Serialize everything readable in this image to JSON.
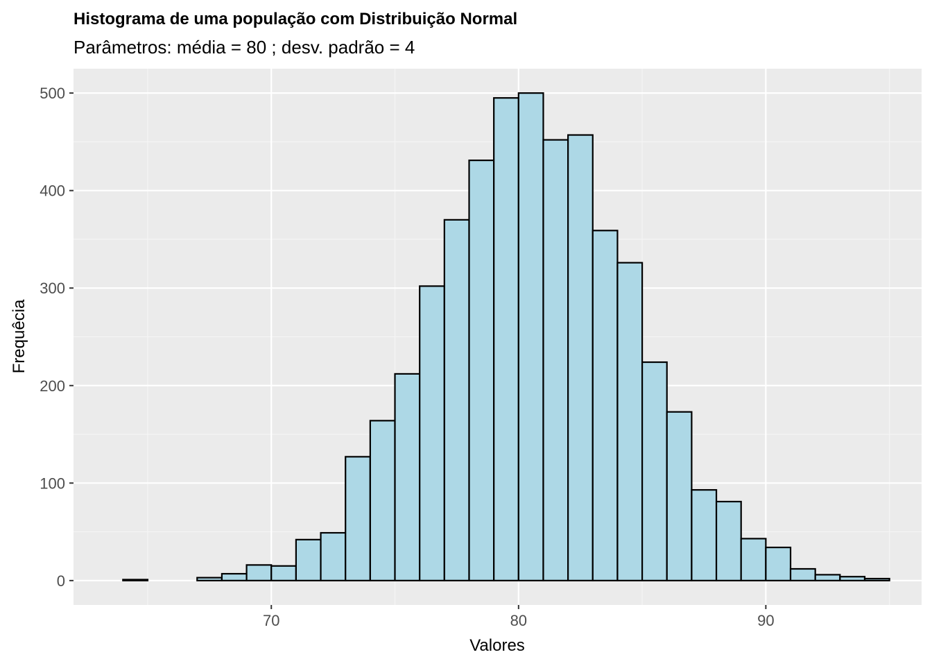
{
  "chart_data": {
    "type": "bar",
    "title": "Histograma de uma população com Distribuição Normal",
    "subtitle": "Parâmetros: média = 80 ; desv. padrão = 4",
    "xlabel": "Valores",
    "ylabel": "Frequêcia",
    "xlim": [
      62.0,
      96.3
    ],
    "ylim": [
      -25,
      525
    ],
    "x_ticks": [
      70,
      80,
      90
    ],
    "x_minor_ticks": [
      65,
      75,
      85,
      95
    ],
    "y_ticks": [
      0,
      100,
      200,
      300,
      400,
      500
    ],
    "y_minor_ticks": [
      50,
      150,
      250,
      350,
      450
    ],
    "bin_width": 1,
    "bins": [
      {
        "x": 64.5,
        "count": 1
      },
      {
        "x": 65.5,
        "count": 0
      },
      {
        "x": 66.5,
        "count": 0
      },
      {
        "x": 67.5,
        "count": 3
      },
      {
        "x": 68.5,
        "count": 7
      },
      {
        "x": 69.5,
        "count": 16
      },
      {
        "x": 70.5,
        "count": 15
      },
      {
        "x": 71.5,
        "count": 42
      },
      {
        "x": 72.5,
        "count": 49
      },
      {
        "x": 73.5,
        "count": 127
      },
      {
        "x": 74.5,
        "count": 164
      },
      {
        "x": 75.5,
        "count": 212
      },
      {
        "x": 76.5,
        "count": 302
      },
      {
        "x": 77.5,
        "count": 370
      },
      {
        "x": 78.5,
        "count": 431
      },
      {
        "x": 79.5,
        "count": 495
      },
      {
        "x": 80.5,
        "count": 500
      },
      {
        "x": 81.5,
        "count": 452
      },
      {
        "x": 82.5,
        "count": 457
      },
      {
        "x": 83.5,
        "count": 359
      },
      {
        "x": 84.5,
        "count": 326
      },
      {
        "x": 85.5,
        "count": 224
      },
      {
        "x": 86.5,
        "count": 173
      },
      {
        "x": 87.5,
        "count": 93
      },
      {
        "x": 88.5,
        "count": 81
      },
      {
        "x": 89.5,
        "count": 43
      },
      {
        "x": 90.5,
        "count": 34
      },
      {
        "x": 91.5,
        "count": 12
      },
      {
        "x": 92.5,
        "count": 6
      },
      {
        "x": 93.5,
        "count": 4
      },
      {
        "x": 94.5,
        "count": 2
      }
    ],
    "grid": true,
    "colors": {
      "panel_background": "#ebebeb",
      "grid_major": "#ffffff",
      "grid_minor": "#f5f5f5",
      "bar_fill": "#add8e6",
      "bar_stroke": "#000000",
      "tick_text": "#4d4d4d",
      "tick_mark": "#333333"
    }
  }
}
